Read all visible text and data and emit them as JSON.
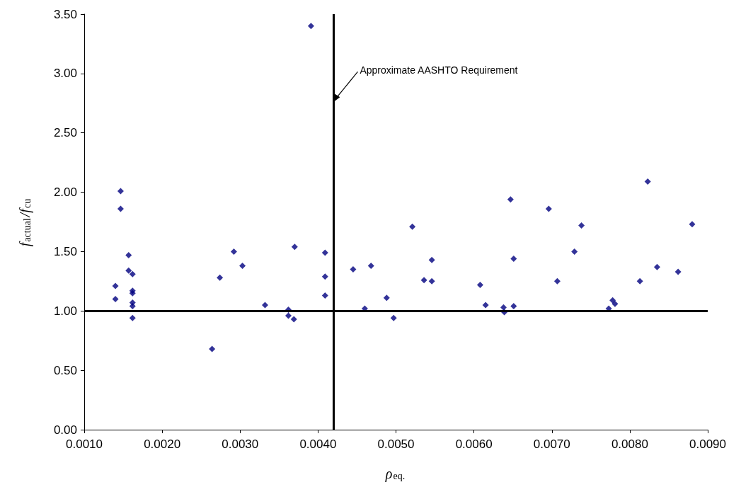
{
  "chart_data": {
    "type": "scatter",
    "xlabel": "ρ$_{eq.}$",
    "ylabel": "f$_{actual}$/f$_{cu}$",
    "series": [
      {
        "color": "#000080",
        "x": [
          0.0014,
          0.0014,
          0.001467,
          0.001467,
          0.00157,
          0.00157,
          0.00162,
          0.00162,
          0.00162,
          0.00162,
          0.00162,
          0.00162,
          0.00264,
          0.00274,
          0.00292,
          0.00303,
          0.00332,
          0.00362,
          0.00362,
          0.00369,
          0.0037,
          0.00391,
          0.00409,
          0.00409,
          0.00409,
          0.00445,
          0.0046,
          0.00468,
          0.00488,
          0.00497,
          0.00521,
          0.00536,
          0.00546,
          0.00546,
          0.00608,
          0.00615,
          0.00638,
          0.00639,
          0.00647,
          0.00651,
          0.00651,
          0.00696,
          0.00707,
          0.00729,
          0.00738,
          0.00773,
          0.00778,
          0.00781,
          0.00813,
          0.00823,
          0.00835,
          0.00862,
          0.0088
        ],
        "values": [
          1.21,
          1.1,
          2.01,
          1.86,
          1.47,
          1.34,
          1.31,
          1.17,
          1.15,
          1.07,
          1.04,
          0.94,
          0.68,
          1.28,
          1.5,
          1.38,
          1.05,
          1.01,
          0.96,
          0.93,
          1.54,
          3.4,
          1.49,
          1.29,
          1.13,
          1.35,
          1.02,
          1.38,
          1.11,
          0.94,
          1.71,
          1.26,
          1.25,
          1.43,
          1.22,
          1.05,
          1.03,
          0.99,
          1.94,
          1.44,
          1.04,
          1.86,
          1.25,
          1.5,
          1.72,
          1.02,
          1.09,
          1.06,
          1.25,
          2.09,
          1.37,
          1.33,
          1.73
        ]
      }
    ],
    "marker": "diamond",
    "xlim": [
      0.001,
      0.009
    ],
    "xticks": [
      {
        "value": 0.001,
        "label": "0.0010"
      },
      {
        "value": 0.002,
        "label": "0.0020"
      },
      {
        "value": 0.003,
        "label": "0.0030"
      },
      {
        "value": 0.004,
        "label": "0.0040"
      },
      {
        "value": 0.005,
        "label": "0.0050"
      },
      {
        "value": 0.006,
        "label": "0.0060"
      },
      {
        "value": 0.007,
        "label": "0.0070"
      },
      {
        "value": 0.008,
        "label": "0.0080"
      },
      {
        "value": 0.009,
        "label": "0.0090"
      }
    ],
    "ylim": [
      0,
      3.5
    ],
    "yticks": [
      {
        "value": 0,
        "label": "0.00"
      },
      {
        "value": 0.5,
        "label": "0.50"
      },
      {
        "value": 1,
        "label": "1.00"
      },
      {
        "value": 1.5,
        "label": "1.50"
      },
      {
        "value": 2,
        "label": "2.00"
      },
      {
        "value": 2.5,
        "label": "2.50"
      },
      {
        "value": 3,
        "label": "3.00"
      },
      {
        "value": 3.5,
        "label": "3.50"
      }
    ],
    "ref_lines": [
      {
        "axis": "y",
        "value": 1.0,
        "color": "#000000"
      },
      {
        "axis": "x",
        "value": 0.0042,
        "color": "#000000",
        "label": "Approximate AASHTO Requirement"
      }
    ],
    "grid": false
  }
}
